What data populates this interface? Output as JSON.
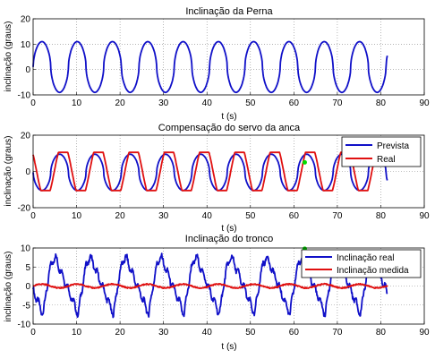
{
  "chart_data": [
    {
      "type": "line",
      "title": "Inclinação da Perna",
      "xlabel": "t (s)",
      "ylabel": "inclinação (graus)",
      "xlim": [
        0,
        90
      ],
      "ylim": [
        -10,
        20
      ],
      "xticks": [
        "0",
        "10",
        "20",
        "30",
        "40",
        "50",
        "60",
        "70",
        "80",
        "90"
      ],
      "yticks": [
        "-10",
        "0",
        "10",
        "20"
      ],
      "grid": true,
      "legend": "none",
      "series": [
        {
          "name": "",
          "color": "#1010c8",
          "shape": "smooth-wave",
          "period": 8.12,
          "amplitude": 10,
          "offset": 1,
          "phase_start": 0.0,
          "x_start": 0,
          "x_end": 81.5
        }
      ]
    },
    {
      "type": "line",
      "title": "Compensação do servo da anca",
      "xlabel": "t (s)",
      "ylabel": "inclinação (graus)",
      "xlim": [
        0,
        90
      ],
      "ylim": [
        -20,
        20
      ],
      "xticks": [
        "0",
        "10",
        "20",
        "30",
        "40",
        "50",
        "60",
        "70",
        "80",
        "90"
      ],
      "yticks": [
        "-20",
        "0",
        "20"
      ],
      "grid": true,
      "legend": "top-right",
      "series": [
        {
          "name": "Prevista",
          "color": "#1010c8",
          "shape": "smooth-wave",
          "period": 8.12,
          "amplitude": 10,
          "offset": -0.5,
          "phase_start": 0.5,
          "x_start": 0,
          "x_end": 81.5
        },
        {
          "name": "Real",
          "color": "#e01010",
          "shape": "trapezoid-wave",
          "period": 8.12,
          "amplitude": 10.5,
          "offset": 0,
          "phase_start": 0.4,
          "x_start": 0,
          "x_end": 81.5
        }
      ],
      "marker": {
        "x": 62.5,
        "y": 5,
        "color": "#00dd00"
      }
    },
    {
      "type": "line",
      "title": "Inclinação do tronco",
      "xlabel": "t (s)",
      "ylabel": "inclinação (graus)",
      "xlim": [
        0,
        90
      ],
      "ylim": [
        -10,
        10
      ],
      "xticks": [
        "0",
        "10",
        "20",
        "30",
        "40",
        "50",
        "60",
        "70",
        "80",
        "90"
      ],
      "yticks": [
        "-10",
        "-5",
        "0",
        "5",
        "10"
      ],
      "grid": true,
      "legend": "top-right",
      "series": [
        {
          "name": "Inclinação real",
          "color": "#1010c8",
          "shape": "sawtooth-noisy",
          "period": 8.12,
          "amplitude": 7.5,
          "offset": 0,
          "phase_start": 0.72,
          "x_start": 0,
          "x_end": 81.5
        },
        {
          "name": "Inclinação medida",
          "color": "#e01010",
          "shape": "small-wave",
          "period": 8.12,
          "amplitude": 0.5,
          "offset": 0,
          "phase_start": 0.0,
          "x_start": 0,
          "x_end": 81.5
        }
      ],
      "marker": {
        "x": 62.5,
        "y": 9.8,
        "color": "#00dd00"
      }
    }
  ]
}
